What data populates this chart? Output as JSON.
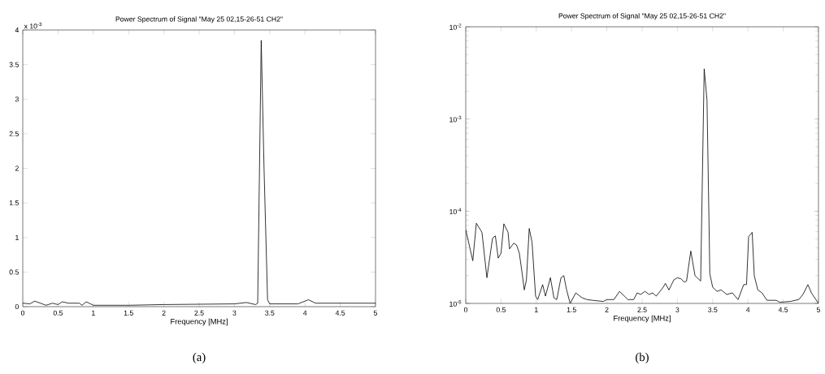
{
  "chart_data": [
    {
      "type": "line",
      "title": "Power Spectrum of Signal \"May 25 02,15-26-51 CH2\"",
      "xlabel": "Frequency [MHz]",
      "color": "#000000",
      "x": [
        0,
        0.1,
        0.17,
        0.33,
        0.42,
        0.5,
        0.56,
        0.65,
        0.8,
        0.84,
        0.9,
        1.0,
        1.5,
        2,
        3,
        3.17,
        3.3,
        3.33,
        3.38,
        3.42,
        3.47,
        3.5,
        3.9,
        4.05,
        4.15,
        5
      ],
      "values": [
        0.05,
        0.04,
        0.08,
        0.02,
        0.05,
        0.03,
        0.07,
        0.05,
        0.05,
        0.02,
        0.07,
        0.02,
        0.02,
        0.03,
        0.04,
        0.06,
        0.03,
        0.05,
        3.85,
        2.0,
        0.1,
        0.04,
        0.04,
        0.1,
        0.05,
        0.05
      ],
      "xlim": [
        0,
        5
      ],
      "xticks": [
        0,
        0.5,
        1,
        1.5,
        2,
        2.5,
        3,
        3.5,
        4,
        4.5,
        5
      ],
      "ylim": [
        0,
        4
      ],
      "yticks": [
        0,
        0.5,
        1,
        1.5,
        2,
        2.5,
        3,
        3.5,
        4
      ],
      "annotations": [
        "x 10$^{-3}$",
        "(a)"
      ]
    },
    {
      "type": "line",
      "title": "Power Spectrum of Signal \"May 25 02,15-26-51 CH2\"",
      "xlabel": "Frequency [MHz]",
      "color": "#000000",
      "log": "y",
      "x": [
        0,
        0.1,
        0.15,
        0.23,
        0.3,
        0.38,
        0.42,
        0.46,
        0.5,
        0.54,
        0.6,
        0.62,
        0.68,
        0.72,
        0.76,
        0.8,
        0.83,
        0.86,
        0.9,
        0.94,
        0.99,
        1.02,
        1.09,
        1.13,
        1.2,
        1.25,
        1.29,
        1.35,
        1.39,
        1.43,
        1.48,
        1.56,
        1.65,
        1.72,
        1.8,
        1.95,
        2.0,
        2.1,
        2.18,
        2.3,
        2.38,
        2.43,
        2.48,
        2.54,
        2.6,
        2.65,
        2.7,
        2.8,
        2.83,
        2.88,
        2.95,
        3.0,
        3.05,
        3.1,
        3.13,
        3.19,
        3.25,
        3.33,
        3.38,
        3.42,
        3.46,
        3.5,
        3.56,
        3.62,
        3.7,
        3.78,
        3.86,
        3.94,
        3.98,
        4.01,
        4.06,
        4.09,
        4.14,
        4.2,
        4.27,
        4.4,
        4.45,
        4.6,
        4.72,
        4.78,
        4.85,
        4.9,
        5.0
      ],
      "values": [
        6.3e-05,
        2.9e-05,
        7.4e-05,
        5.9e-05,
        1.9e-05,
        5.1e-05,
        5.4e-05,
        3.1e-05,
        3.5e-05,
        7.3e-05,
        5.9e-05,
        3.9e-05,
        4.5e-05,
        4.3e-05,
        3.5e-05,
        2.1e-05,
        1.4e-05,
        1.8e-05,
        6.5e-05,
        4.6e-05,
        1.2e-05,
        1.1e-05,
        1.6e-05,
        1.2e-05,
        1.9e-05,
        1.15e-05,
        1.1e-05,
        1.9e-05,
        2e-05,
        1.4e-05,
        1e-05,
        1.3e-05,
        1.15e-05,
        1.1e-05,
        1.08e-05,
        1.05e-05,
        1.1e-05,
        1.1e-05,
        1.35e-05,
        1.1e-05,
        1.1e-05,
        1.3e-05,
        1.25e-05,
        1.35e-05,
        1.25e-05,
        1.3e-05,
        1.2e-05,
        1.5e-05,
        1.65e-05,
        1.4e-05,
        1.8e-05,
        1.9e-05,
        1.85e-05,
        1.7e-05,
        1.75e-05,
        3.7e-05,
        2e-05,
        1.75e-05,
        0.0035,
        0.0016,
        2.1e-05,
        1.5e-05,
        1.35e-05,
        1.4e-05,
        1.25e-05,
        1.3e-05,
        1.1e-05,
        1.6e-05,
        1.6e-05,
        5.3e-05,
        5.9e-05,
        2e-05,
        1.4e-05,
        1.3e-05,
        1.08e-05,
        1.08e-05,
        1.03e-05,
        1.05e-05,
        1.1e-05,
        1.25e-05,
        1.6e-05,
        1.3e-05,
        1e-05
      ],
      "xlim": [
        0,
        5
      ],
      "xticks": [
        0,
        0.5,
        1,
        1.5,
        2,
        2.5,
        3,
        3.5,
        4,
        4.5,
        5
      ],
      "ylim": [
        1e-05,
        0.01
      ],
      "yticks": [
        {
          "value": 1e-05,
          "label": "10$^{-5}$"
        },
        {
          "value": 0.0001,
          "label": "10$^{-4}$"
        },
        {
          "value": 0.001,
          "label": "10$^{-3}$"
        },
        {
          "value": 0.01,
          "label": "10$^{-2}$"
        }
      ],
      "annotations": [
        "(b)"
      ]
    }
  ]
}
